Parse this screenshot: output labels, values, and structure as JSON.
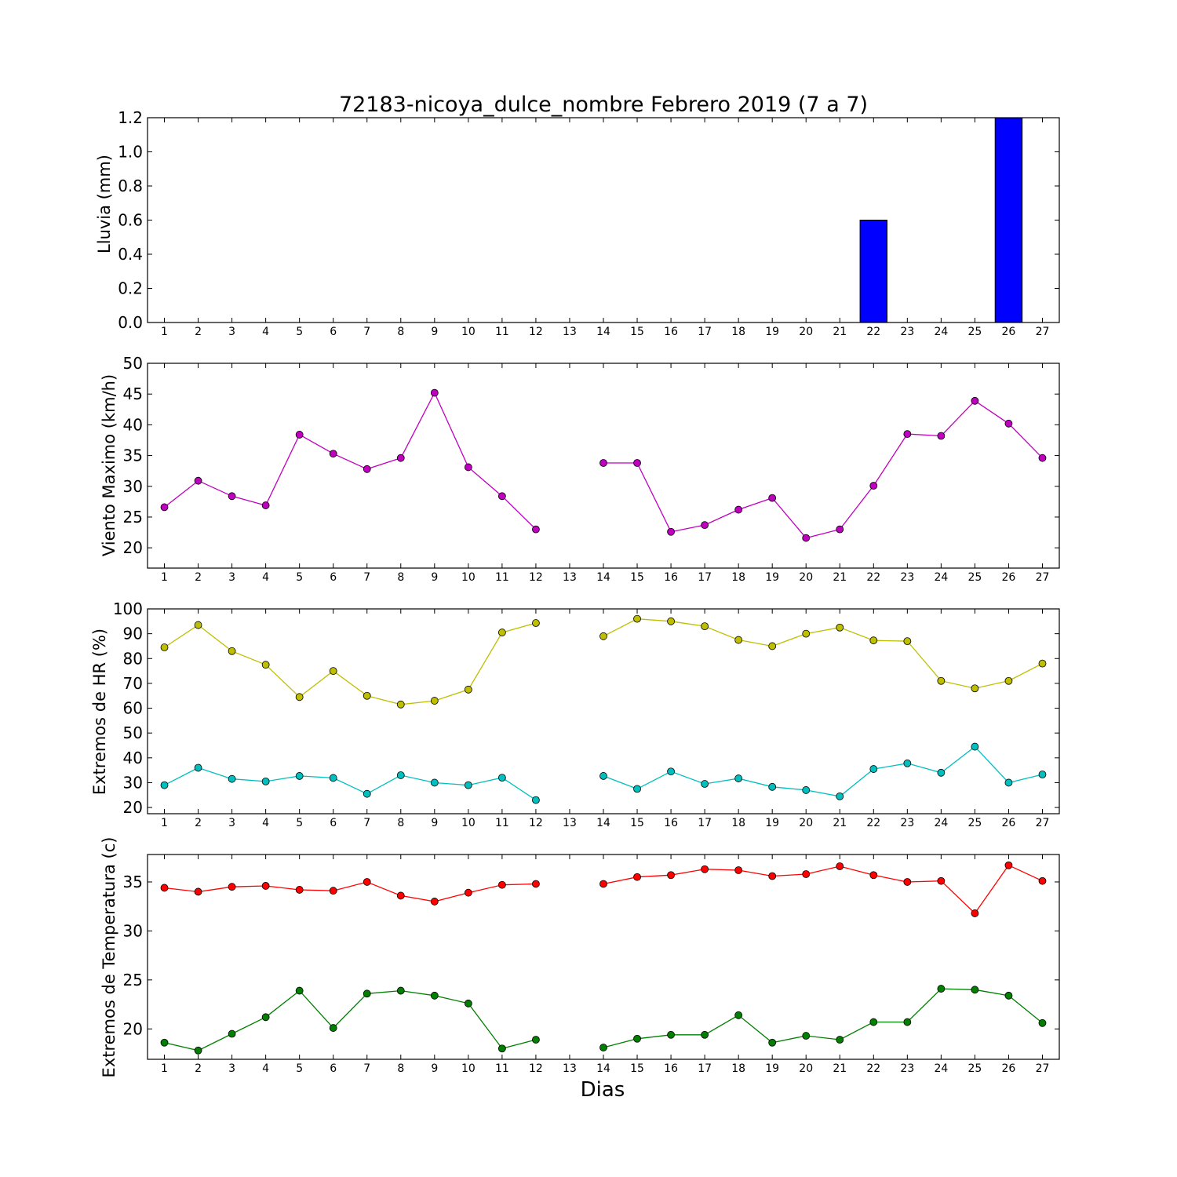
{
  "chart_data": {
    "type": "multi-panel",
    "title": "72183-nicoya_dulce_nombre Febrero 2019  (7 a 7)",
    "xlabel": "Dias",
    "days": [
      1,
      2,
      3,
      4,
      5,
      6,
      7,
      8,
      9,
      10,
      11,
      12,
      13,
      14,
      15,
      16,
      17,
      18,
      19,
      20,
      21,
      22,
      23,
      24,
      25,
      26,
      27
    ],
    "panels": [
      {
        "type": "bar",
        "ylabel": "Lluvia (mm)",
        "ylim": [
          0,
          1.2
        ],
        "yticks": [
          "0.0",
          "0.2",
          "0.4",
          "0.6",
          "0.8",
          "1.0",
          "1.2"
        ],
        "series": [
          {
            "color": "#0000ff",
            "values": [
              0,
              0,
              0,
              0,
              0,
              0,
              0,
              0,
              0,
              0,
              0,
              0,
              null,
              0,
              0,
              0,
              0,
              0,
              0,
              0,
              0,
              0.6,
              0,
              0,
              0,
              1.2,
              0
            ]
          }
        ]
      },
      {
        "type": "line",
        "ylabel": "Viento Maximo (km/h)",
        "ylim": [
          16.7,
          50
        ],
        "yticks": [
          "20",
          "25",
          "30",
          "35",
          "40",
          "45",
          "50"
        ],
        "series": [
          {
            "color": "#bf00bf",
            "values": [
              26.6,
              30.9,
              28.4,
              26.9,
              38.4,
              35.3,
              32.8,
              34.6,
              45.2,
              33.1,
              28.4,
              23.0,
              null,
              33.8,
              33.8,
              22.6,
              23.7,
              26.2,
              28.1,
              21.6,
              23.0,
              30.1,
              38.5,
              38.2,
              43.9,
              40.2,
              34.6
            ]
          }
        ]
      },
      {
        "type": "line",
        "ylabel": "Extremos de HR (%)",
        "ylim": [
          17.5,
          100
        ],
        "yticks": [
          "20",
          "30",
          "40",
          "50",
          "60",
          "70",
          "80",
          "90",
          "100"
        ],
        "series": [
          {
            "color": "#bfbf00",
            "values": [
              84.5,
              93.5,
              83.0,
              77.5,
              64.5,
              75.0,
              65.0,
              61.5,
              63.0,
              67.5,
              90.5,
              94.3,
              null,
              89.0,
              96.0,
              95.0,
              93.0,
              87.5,
              85.0,
              90.0,
              92.5,
              87.3,
              87.0,
              71.0,
              68.0,
              71.0,
              78.0
            ]
          },
          {
            "color": "#00bfbf",
            "values": [
              29.0,
              36.0,
              31.5,
              30.5,
              32.7,
              31.9,
              25.5,
              33.0,
              30.0,
              29.0,
              32.0,
              23.0,
              null,
              32.7,
              27.5,
              34.5,
              29.5,
              31.7,
              28.3,
              27.0,
              24.5,
              35.5,
              37.8,
              34.0,
              44.5,
              30.0,
              33.3
            ]
          }
        ]
      },
      {
        "type": "line",
        "ylabel": "Extremos de Temperatura (c)",
        "ylim": [
          16.9,
          37.8
        ],
        "yticks": [
          "20",
          "25",
          "30",
          "35"
        ],
        "series": [
          {
            "color": "#ff0000",
            "values": [
              34.4,
              34.0,
              34.5,
              34.6,
              34.2,
              34.1,
              35.0,
              33.6,
              33.0,
              33.9,
              34.7,
              34.8,
              null,
              34.8,
              35.5,
              35.7,
              36.3,
              36.2,
              35.6,
              35.8,
              36.6,
              35.7,
              35.0,
              35.1,
              31.8,
              36.7,
              35.1
            ]
          },
          {
            "color": "#007f00",
            "values": [
              18.6,
              17.8,
              19.5,
              21.2,
              23.9,
              20.1,
              23.6,
              23.9,
              23.4,
              22.6,
              18.0,
              18.9,
              null,
              18.1,
              19.0,
              19.4,
              19.4,
              21.4,
              18.6,
              19.3,
              18.9,
              20.7,
              20.7,
              24.1,
              24.0,
              23.4,
              20.6
            ]
          }
        ]
      }
    ]
  }
}
